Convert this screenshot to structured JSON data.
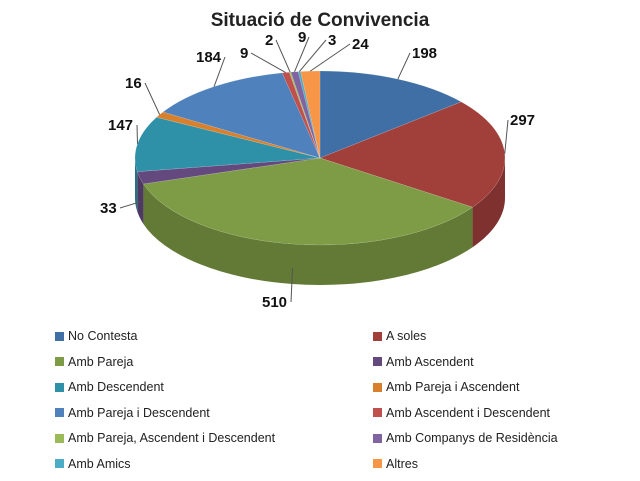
{
  "chart_data": {
    "type": "pie",
    "three_d": true,
    "title": "Situació de Convivencia",
    "categories": [
      "No Contesta",
      "A soles",
      "Amb Pareja",
      "Amb Ascendent",
      "Amb Descendent",
      "Amb Pareja i Ascendent",
      "Amb Pareja i Descendent",
      "Amb Ascendent i Descendent",
      "Amb Pareja, Ascendent i Descendent",
      "Amb Companys de Residència",
      "Amb Amics",
      "Altres"
    ],
    "values": [
      198,
      297,
      510,
      33,
      147,
      16,
      184,
      9,
      2,
      9,
      3,
      24
    ],
    "colors": [
      "#3F6FA4",
      "#A13F3B",
      "#7E9C45",
      "#64497F",
      "#2F91A8",
      "#D9802C",
      "#4F81BD",
      "#C0504D",
      "#9BBB59",
      "#8064A2",
      "#4BACC6",
      "#F79646"
    ],
    "legend_position": "bottom"
  }
}
